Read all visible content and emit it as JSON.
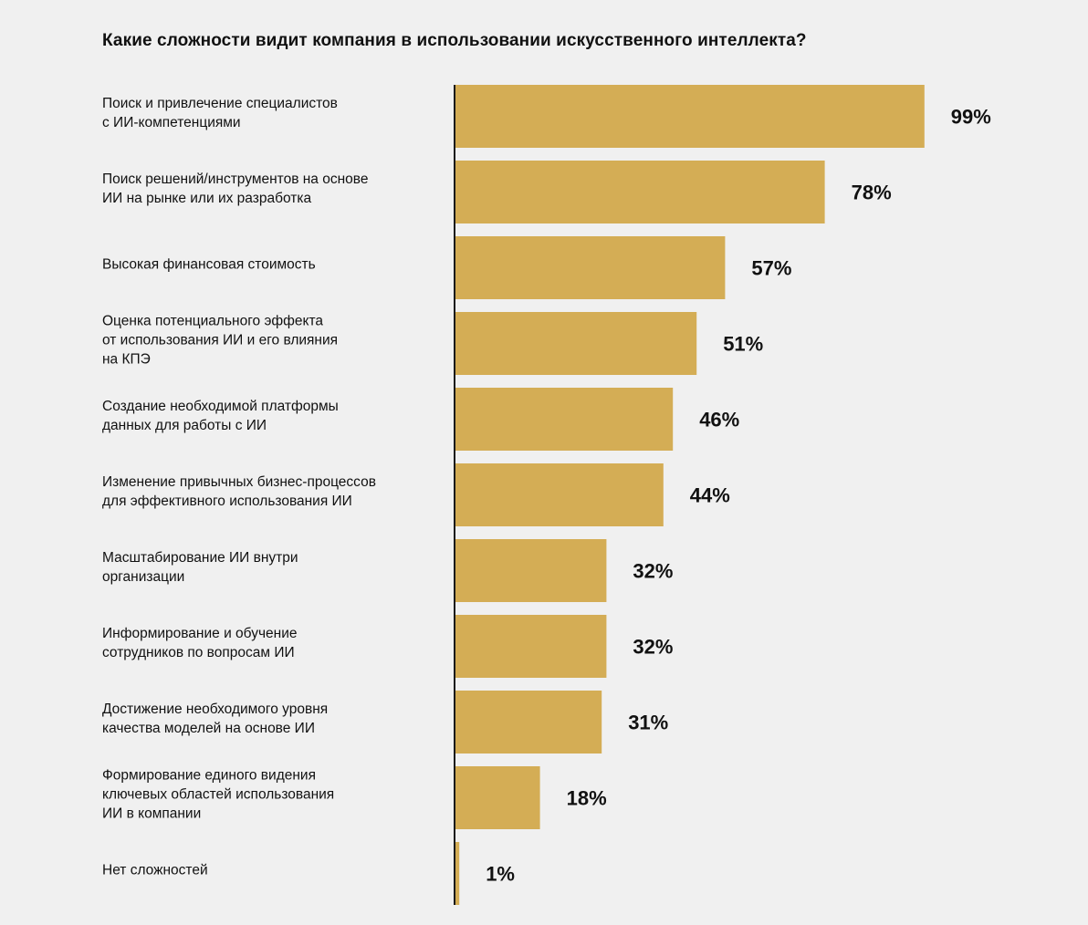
{
  "chart_data": {
    "type": "bar",
    "orientation": "horizontal",
    "title": "Какие сложности видит компания в использовании искусственного интеллекта?",
    "categories": [
      [
        "Поиск и привлечение специалистов",
        "с ИИ-компетенциями"
      ],
      [
        "Поиск решений/инструментов на основе",
        "ИИ на рынке или их разработка"
      ],
      [
        "Высокая финансовая стоимость"
      ],
      [
        "Оценка потенциального эффекта",
        "от использования ИИ и его влияния",
        "на КПЭ"
      ],
      [
        "Создание необходимой платформы",
        "данных для работы с ИИ"
      ],
      [
        "Изменение привычных бизнес-процессов",
        "для эффективного использования ИИ"
      ],
      [
        "Масштабирование ИИ внутри",
        "организации"
      ],
      [
        "Информирование и обучение",
        "сотрудников по вопросам ИИ"
      ],
      [
        "Достижение необходимого уровня",
        "качества моделей на основе ИИ"
      ],
      [
        "Формирование единого видения",
        "ключевых областей использования",
        "ИИ в компании"
      ],
      [
        "Нет сложностей"
      ]
    ],
    "values": [
      99,
      78,
      57,
      51,
      46,
      44,
      32,
      32,
      31,
      18,
      1
    ],
    "value_labels": [
      "99%",
      "78%",
      "57%",
      "51%",
      "46%",
      "44%",
      "32%",
      "32%",
      "31%",
      "18%",
      "1%"
    ],
    "xlim": [
      0,
      100
    ],
    "grid": false,
    "legend": "none",
    "colors": {
      "bar": "#d4ad55",
      "axis": "#1a1a1a",
      "text": "#111111",
      "background": "#f0f0f0"
    }
  }
}
